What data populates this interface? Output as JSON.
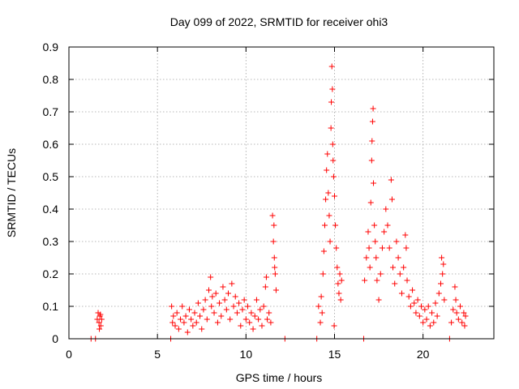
{
  "chart_data": {
    "type": "scatter",
    "title": "Day 099 of 2022, SRMTID for receiver ohi3",
    "xlabel": "GPS time / hours",
    "ylabel": "SRMTID / TECUs",
    "xlim": [
      0,
      24
    ],
    "ylim": [
      0,
      0.9
    ],
    "xticks": [
      0,
      5,
      10,
      15,
      20
    ],
    "xtick_labels": [
      "0",
      "5",
      "10",
      "15",
      "20"
    ],
    "yticks": [
      0,
      0.1,
      0.2,
      0.3,
      0.4,
      0.5,
      0.6,
      0.7,
      0.8,
      0.9
    ],
    "ytick_labels": [
      "0",
      "0.1",
      "0.2",
      "0.3",
      "0.4",
      "0.5",
      "0.6",
      "0.7",
      "0.8",
      "0.9"
    ],
    "grid": true,
    "marker": "+",
    "color": "#ff0000",
    "series": [
      {
        "name": "SRMTID",
        "points": [
          [
            1.25,
            0
          ],
          [
            1.5,
            0
          ],
          [
            1.6,
            0.06
          ],
          [
            1.65,
            0.08
          ],
          [
            1.7,
            0.05
          ],
          [
            1.75,
            0.07
          ],
          [
            1.8,
            0.04
          ],
          [
            1.85,
            0.06
          ],
          [
            1.72,
            0.03
          ],
          [
            1.78,
            0.075
          ],
          [
            5.75,
            0
          ],
          [
            5.8,
            0.1
          ],
          [
            5.85,
            0.05
          ],
          [
            5.9,
            0.07
          ],
          [
            6.0,
            0.04
          ],
          [
            6.1,
            0.08
          ],
          [
            6.2,
            0.03
          ],
          [
            6.3,
            0.06
          ],
          [
            6.4,
            0.1
          ],
          [
            6.5,
            0.05
          ],
          [
            6.6,
            0.07
          ],
          [
            6.7,
            0.02
          ],
          [
            6.8,
            0.09
          ],
          [
            6.9,
            0.06
          ],
          [
            7.0,
            0.04
          ],
          [
            7.1,
            0.08
          ],
          [
            7.2,
            0.05
          ],
          [
            7.3,
            0.11
          ],
          [
            7.4,
            0.07
          ],
          [
            7.5,
            0.03
          ],
          [
            7.6,
            0.09
          ],
          [
            7.7,
            0.12
          ],
          [
            7.8,
            0.06
          ],
          [
            7.9,
            0.15
          ],
          [
            8.0,
            0.19
          ],
          [
            8.05,
            0.1
          ],
          [
            8.1,
            0.13
          ],
          [
            8.2,
            0.08
          ],
          [
            8.3,
            0.14
          ],
          [
            8.4,
            0.05
          ],
          [
            8.5,
            0.11
          ],
          [
            8.6,
            0.07
          ],
          [
            8.7,
            0.16
          ],
          [
            8.8,
            0.12
          ],
          [
            8.9,
            0.09
          ],
          [
            9.0,
            0.14
          ],
          [
            9.1,
            0.06
          ],
          [
            9.2,
            0.17
          ],
          [
            9.3,
            0.1
          ],
          [
            9.4,
            0.13
          ],
          [
            9.5,
            0.08
          ],
          [
            9.6,
            0.11
          ],
          [
            9.7,
            0.04
          ],
          [
            9.8,
            0.09
          ],
          [
            9.9,
            0.12
          ],
          [
            10.0,
            0.06
          ],
          [
            10.1,
            0.1
          ],
          [
            10.2,
            0.05
          ],
          [
            10.3,
            0.08
          ],
          [
            10.4,
            0.03
          ],
          [
            10.5,
            0.07
          ],
          [
            10.6,
            0.12
          ],
          [
            10.7,
            0.06
          ],
          [
            10.8,
            0.09
          ],
          [
            10.9,
            0.04
          ],
          [
            11.0,
            0.1
          ],
          [
            11.1,
            0.16
          ],
          [
            11.15,
            0.19
          ],
          [
            11.2,
            0.06
          ],
          [
            11.3,
            0.08
          ],
          [
            11.4,
            0.05
          ],
          [
            11.5,
            0.38
          ],
          [
            11.55,
            0.3
          ],
          [
            11.6,
            0.25
          ],
          [
            11.65,
            0.2
          ],
          [
            11.7,
            0.15
          ],
          [
            11.58,
            0.35
          ],
          [
            11.62,
            0.22
          ],
          [
            12.2,
            0
          ],
          [
            14.0,
            0
          ],
          [
            14.1,
            0.1
          ],
          [
            14.2,
            0.05
          ],
          [
            14.25,
            0.13
          ],
          [
            14.3,
            0.08
          ],
          [
            14.35,
            0.2
          ],
          [
            14.4,
            0.27
          ],
          [
            14.45,
            0.35
          ],
          [
            14.5,
            0.43
          ],
          [
            14.55,
            0.52
          ],
          [
            14.6,
            0.57
          ],
          [
            14.65,
            0.45
          ],
          [
            14.7,
            0.38
          ],
          [
            14.75,
            0.3
          ],
          [
            14.8,
            0.65
          ],
          [
            14.82,
            0.73
          ],
          [
            14.85,
            0.84
          ],
          [
            14.88,
            0.77
          ],
          [
            14.9,
            0.6
          ],
          [
            14.92,
            0.55
          ],
          [
            14.95,
            0.5
          ],
          [
            15.0,
            0.44
          ],
          [
            15.05,
            0.35
          ],
          [
            15.1,
            0.28
          ],
          [
            15.15,
            0.22
          ],
          [
            15.2,
            0.17
          ],
          [
            15.25,
            0.14
          ],
          [
            15.3,
            0.2
          ],
          [
            15.35,
            0.12
          ],
          [
            15.4,
            0.18
          ],
          [
            14.98,
            0.04
          ],
          [
            16.65,
            0
          ],
          [
            16.7,
            0.18
          ],
          [
            16.8,
            0.25
          ],
          [
            16.9,
            0.33
          ],
          [
            16.95,
            0.28
          ],
          [
            17.0,
            0.22
          ],
          [
            17.05,
            0.42
          ],
          [
            17.1,
            0.55
          ],
          [
            17.12,
            0.61
          ],
          [
            17.15,
            0.67
          ],
          [
            17.18,
            0.71
          ],
          [
            17.2,
            0.48
          ],
          [
            17.25,
            0.35
          ],
          [
            17.3,
            0.3
          ],
          [
            17.35,
            0.25
          ],
          [
            17.4,
            0.18
          ],
          [
            17.5,
            0.12
          ],
          [
            17.6,
            0.2
          ],
          [
            17.7,
            0.28
          ],
          [
            17.8,
            0.33
          ],
          [
            17.9,
            0.4
          ],
          [
            18.0,
            0.35
          ],
          [
            18.1,
            0.28
          ],
          [
            18.2,
            0.49
          ],
          [
            18.25,
            0.43
          ],
          [
            18.3,
            0.22
          ],
          [
            18.4,
            0.17
          ],
          [
            18.5,
            0.3
          ],
          [
            18.6,
            0.25
          ],
          [
            18.7,
            0.2
          ],
          [
            18.8,
            0.14
          ],
          [
            18.9,
            0.22
          ],
          [
            19.0,
            0.32
          ],
          [
            19.05,
            0.28
          ],
          [
            19.1,
            0.18
          ],
          [
            19.2,
            0.13
          ],
          [
            19.3,
            0.1
          ],
          [
            19.4,
            0.15
          ],
          [
            19.5,
            0.11
          ],
          [
            19.6,
            0.08
          ],
          [
            19.7,
            0.12
          ],
          [
            19.8,
            0.07
          ],
          [
            19.9,
            0.1
          ],
          [
            20.0,
            0.05
          ],
          [
            20.1,
            0.09
          ],
          [
            20.2,
            0.06
          ],
          [
            20.3,
            0.1
          ],
          [
            20.4,
            0.04
          ],
          [
            20.5,
            0.08
          ],
          [
            20.6,
            0.05
          ],
          [
            20.7,
            0.11
          ],
          [
            20.8,
            0.07
          ],
          [
            20.9,
            0.14
          ],
          [
            21.0,
            0.17
          ],
          [
            21.05,
            0.25
          ],
          [
            21.1,
            0.2
          ],
          [
            21.15,
            0.23
          ],
          [
            21.2,
            0.12
          ],
          [
            21.5,
            0
          ],
          [
            21.6,
            0.05
          ],
          [
            21.7,
            0.09
          ],
          [
            21.8,
            0.16
          ],
          [
            21.85,
            0.12
          ],
          [
            21.9,
            0.08
          ],
          [
            22.0,
            0.06
          ],
          [
            22.1,
            0.1
          ],
          [
            22.2,
            0.05
          ],
          [
            22.3,
            0.08
          ],
          [
            22.35,
            0.04
          ],
          [
            22.4,
            0.07
          ]
        ]
      }
    ]
  }
}
